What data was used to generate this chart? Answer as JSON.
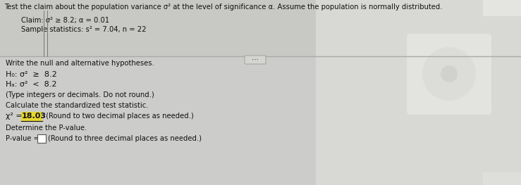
{
  "bg_color": "#c8c8c4",
  "top_bg": "#c8c8c4",
  "bottom_left_bg": "#d0d0cc",
  "top_text": "Test the claim about the population variance σ² at the level of significance α. Assume the population is normally distributed.",
  "claim_line": "Claim: σ² ≥ 8.2; α = 0.01",
  "sample_line": "Sample statistics: s² = 7.04, n = 22",
  "write_hyp": "Write the null and alternative hypotheses.",
  "h0_text": "H₀: σ²  ≥  8.2",
  "ha_text": "Hₐ: σ²  <  8.2",
  "type_note": "(Type integers or decimals. Do not round.)",
  "calc_line": "Calculate the standardized test statistic.",
  "chi_pre": "χ² = ",
  "chi_value": "18.03",
  "chi_post": " (Round to two decimal places as needed.)",
  "det_line": "Determine the P-value.",
  "pval_pre": "P-value = ",
  "pval_post": "(Round to three decimal places as needed.)",
  "highlight_color": "#e8d830",
  "separator_line_color": "#aaaaaa",
  "text_color": "#111111",
  "box_outline_color": "#555555",
  "ellipsis_bg": "#d4d4d0",
  "right_panel_color": "#e0e0dc",
  "font_size_main": 7.2,
  "font_size_hyp": 8.0,
  "font_size_small": 6.5
}
